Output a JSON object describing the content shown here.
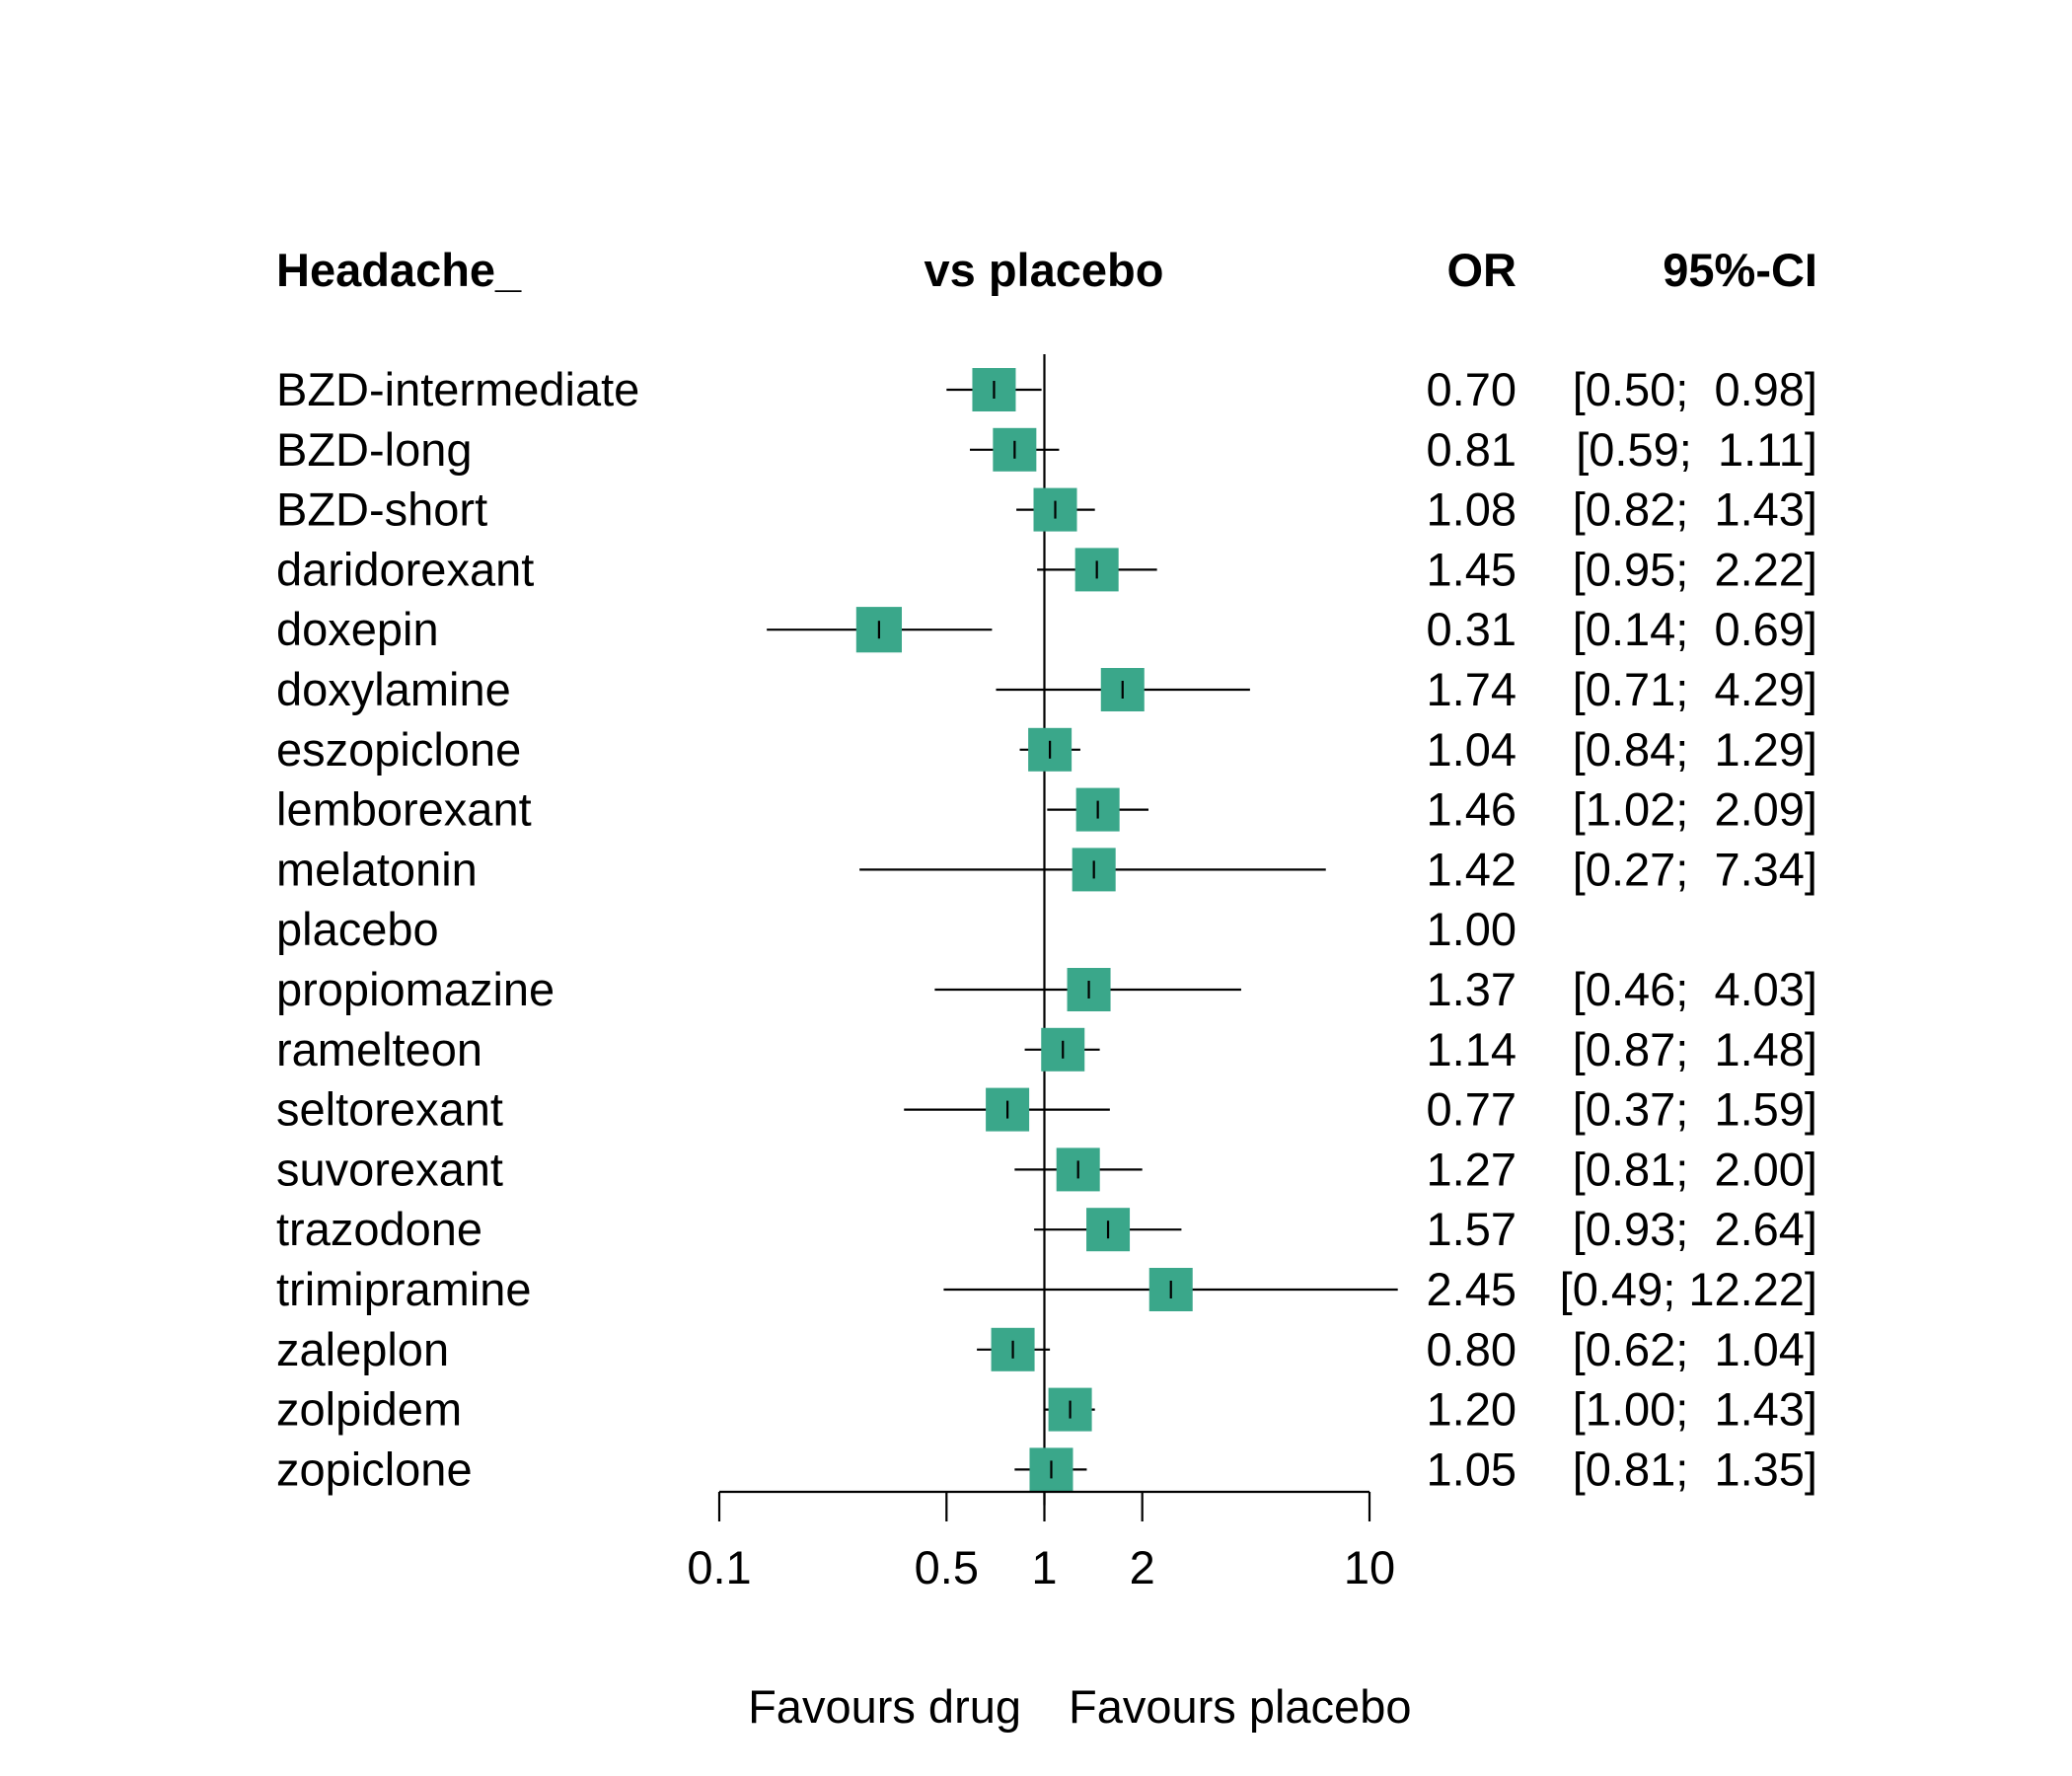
{
  "chart_data": {
    "type": "forest",
    "header": {
      "outcome": "Headache_",
      "comparison": "vs placebo",
      "estimate": "OR",
      "ci": "95%-CI"
    },
    "x_scale": "log",
    "xlim": [
      0.1,
      10
    ],
    "reference_line": 1,
    "x_ticks": [
      {
        "value": 0.1,
        "label": "0.1"
      },
      {
        "value": 0.5,
        "label": "0.5"
      },
      {
        "value": 1,
        "label": "1"
      },
      {
        "value": 2,
        "label": "2"
      },
      {
        "value": 10,
        "label": "10"
      }
    ],
    "favours_left": "Favours drug",
    "favours_right": "Favours placebo",
    "marker_color": "#3aa78a",
    "rows": [
      {
        "name": "BZD-intermediate",
        "or": 0.7,
        "lo": 0.5,
        "hi": 0.98,
        "weight": 1.0,
        "or_text": "0.70",
        "ci_text": "[0.50;  0.98]"
      },
      {
        "name": "BZD-long",
        "or": 0.81,
        "lo": 0.59,
        "hi": 1.11,
        "weight": 1.0,
        "or_text": "0.81",
        "ci_text": "[0.59;  1.11]"
      },
      {
        "name": "BZD-short",
        "or": 1.08,
        "lo": 0.82,
        "hi": 1.43,
        "weight": 1.0,
        "or_text": "1.08",
        "ci_text": "[0.82;  1.43]"
      },
      {
        "name": "daridorexant",
        "or": 1.45,
        "lo": 0.95,
        "hi": 2.22,
        "weight": 1.0,
        "or_text": "1.45",
        "ci_text": "[0.95;  2.22]"
      },
      {
        "name": "doxepin",
        "or": 0.31,
        "lo": 0.14,
        "hi": 0.69,
        "weight": 1.05,
        "or_text": "0.31",
        "ci_text": "[0.14;  0.69]"
      },
      {
        "name": "doxylamine",
        "or": 1.74,
        "lo": 0.71,
        "hi": 4.29,
        "weight": 1.0,
        "or_text": "1.74",
        "ci_text": "[0.71;  4.29]"
      },
      {
        "name": "eszopiclone",
        "or": 1.04,
        "lo": 0.84,
        "hi": 1.29,
        "weight": 1.0,
        "or_text": "1.04",
        "ci_text": "[0.84;  1.29]"
      },
      {
        "name": "lemborexant",
        "or": 1.46,
        "lo": 1.02,
        "hi": 2.09,
        "weight": 1.0,
        "or_text": "1.46",
        "ci_text": "[1.02;  2.09]"
      },
      {
        "name": "melatonin",
        "or": 1.42,
        "lo": 0.27,
        "hi": 7.34,
        "weight": 1.0,
        "or_text": "1.42",
        "ci_text": "[0.27;  7.34]"
      },
      {
        "name": "placebo",
        "or": null,
        "lo": null,
        "hi": null,
        "weight": 0,
        "or_text": "1.00",
        "ci_text": ""
      },
      {
        "name": "propiomazine",
        "or": 1.37,
        "lo": 0.46,
        "hi": 4.03,
        "weight": 1.0,
        "or_text": "1.37",
        "ci_text": "[0.46;  4.03]"
      },
      {
        "name": "ramelteon",
        "or": 1.14,
        "lo": 0.87,
        "hi": 1.48,
        "weight": 1.0,
        "or_text": "1.14",
        "ci_text": "[0.87;  1.48]"
      },
      {
        "name": "seltorexant",
        "or": 0.77,
        "lo": 0.37,
        "hi": 1.59,
        "weight": 1.0,
        "or_text": "0.77",
        "ci_text": "[0.37;  1.59]"
      },
      {
        "name": "suvorexant",
        "or": 1.27,
        "lo": 0.81,
        "hi": 2.0,
        "weight": 1.0,
        "or_text": "1.27",
        "ci_text": "[0.81;  2.00]"
      },
      {
        "name": "trazodone",
        "or": 1.57,
        "lo": 0.93,
        "hi": 2.64,
        "weight": 1.0,
        "or_text": "1.57",
        "ci_text": "[0.93;  2.64]"
      },
      {
        "name": "trimipramine",
        "or": 2.45,
        "lo": 0.49,
        "hi": 12.22,
        "weight": 1.0,
        "or_text": "2.45",
        "ci_text": "[0.49; 12.22]"
      },
      {
        "name": "zaleplon",
        "or": 0.8,
        "lo": 0.62,
        "hi": 1.04,
        "weight": 1.0,
        "or_text": "0.80",
        "ci_text": "[0.62;  1.04]"
      },
      {
        "name": "zolpidem",
        "or": 1.2,
        "lo": 1.0,
        "hi": 1.43,
        "weight": 1.0,
        "or_text": "1.20",
        "ci_text": "[1.00;  1.43]"
      },
      {
        "name": "zopiclone",
        "or": 1.05,
        "lo": 0.81,
        "hi": 1.35,
        "weight": 1.0,
        "or_text": "1.05",
        "ci_text": "[0.81;  1.35]"
      }
    ]
  }
}
